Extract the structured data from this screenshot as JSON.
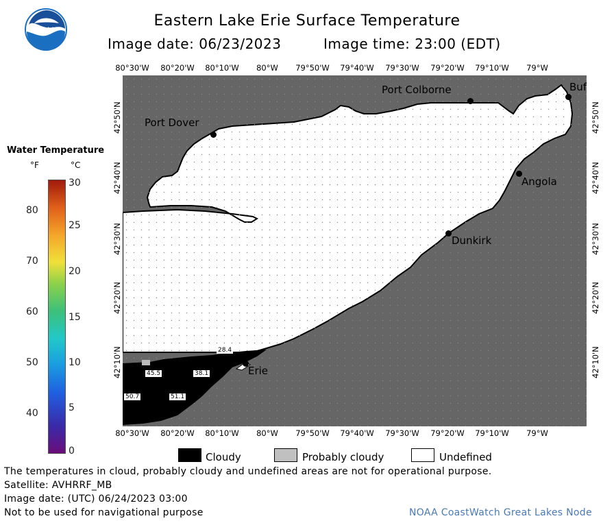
{
  "header": {
    "title": "Eastern Lake Erie Surface Temperature",
    "image_date_label": "Image date: 06/23/2023",
    "image_time_label": "Image time: 23:00 (EDT)"
  },
  "logo": {
    "text": "NOAA",
    "color": "#1a6fc1"
  },
  "colorbar": {
    "title": "Water Temperature",
    "unit_f": "°F",
    "unit_c": "°C",
    "f_ticks": [
      "40",
      "50",
      "60",
      "70",
      "80"
    ],
    "c_ticks": [
      "0",
      "5",
      "10",
      "15",
      "20",
      "25",
      "30"
    ]
  },
  "map": {
    "lon_labels": [
      "80°30'W",
      "80°20'W",
      "80°10'W",
      "80°W",
      "79°50'W",
      "79°40'W",
      "79°30'W",
      "79°20'W",
      "79°10'W",
      "79°W"
    ],
    "lat_labels": [
      "42°10'N",
      "42°20'N",
      "42°30'N",
      "42°40'N",
      "42°50'N"
    ],
    "cities": {
      "port_dover": "Port Dover",
      "port_colborne": "Port Colborne",
      "buffalo": "Buf",
      "angola": "Angola",
      "dunkirk": "Dunkirk",
      "erie": "Erie"
    },
    "cloud_values": {
      "v1": "28.4",
      "v2": "45.5",
      "v3": "38.1",
      "v4": "50.7",
      "v5": "51.1"
    },
    "colors": {
      "land": "#666666",
      "undefined": "#ffffff",
      "cloudy": "#000000",
      "grid": "#aaaaaa"
    }
  },
  "legend": {
    "cloudy": "Cloudy",
    "probably_cloudy": "Probably cloudy",
    "undefined": "Undefined"
  },
  "footer": {
    "disclaimer": "The temperatures in cloud, probably cloudy and undefined areas are not for operational purpose.",
    "satellite": "Satellite: AVHRRF_MB",
    "utc_date": "Image date: (UTC) 06/24/2023  03:00",
    "nav_warning": "Not to be used for navigational purpose",
    "credit": "NOAA CoastWatch Great Lakes Node"
  }
}
